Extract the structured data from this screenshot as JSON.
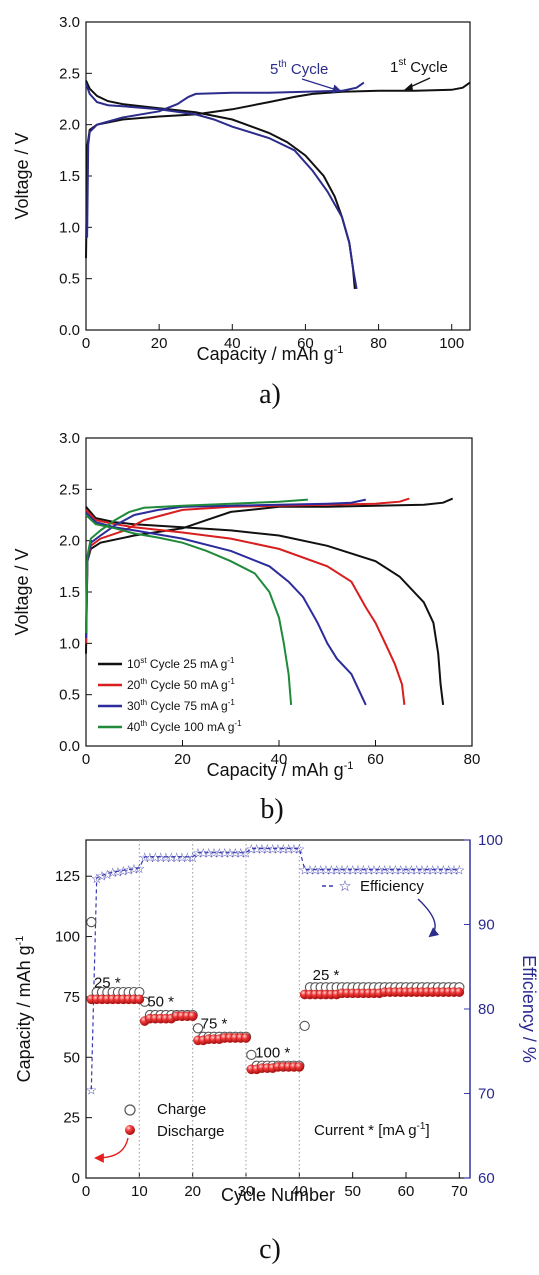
{
  "chart_data": [
    {
      "type": "line",
      "panel_label": "a)",
      "xlabel": "Capacity / mAh g",
      "xlabel_sup": "-1",
      "ylabel": "Voltage / V",
      "xlim": [
        0,
        105
      ],
      "ylim": [
        0,
        3.0
      ],
      "xticks": [
        "0",
        "20",
        "40",
        "60",
        "80",
        "100"
      ],
      "yticks": [
        "0.0",
        "0.5",
        "1.0",
        "1.5",
        "2.0",
        "2.5",
        "3.0"
      ],
      "colors": {
        "cycle1": "#111111",
        "cycle5": "#2c2c8c"
      },
      "annotations": [
        {
          "base": "5",
          "sup": "th",
          "rest": " Cycle",
          "color": "#2c2c8c"
        },
        {
          "base": "1",
          "sup": "st",
          "rest": " Cycle",
          "color": "#111111"
        }
      ],
      "series": [
        {
          "key": "cycle1",
          "color": "#111111",
          "discharge": [
            [
              0,
              2.43
            ],
            [
              1,
              2.35
            ],
            [
              3,
              2.28
            ],
            [
              6,
              2.23
            ],
            [
              10,
              2.2
            ],
            [
              20,
              2.16
            ],
            [
              30,
              2.12
            ],
            [
              40,
              2.05
            ],
            [
              50,
              1.92
            ],
            [
              55,
              1.83
            ],
            [
              60,
              1.7
            ],
            [
              65,
              1.5
            ],
            [
              68,
              1.3
            ],
            [
              70,
              1.1
            ],
            [
              72,
              0.85
            ],
            [
              73,
              0.6
            ],
            [
              73.5,
              0.4
            ]
          ],
          "charge": [
            [
              0,
              0.7
            ],
            [
              0.4,
              1.8
            ],
            [
              1,
              1.95
            ],
            [
              3,
              2.0
            ],
            [
              10,
              2.05
            ],
            [
              20,
              2.08
            ],
            [
              30,
              2.1
            ],
            [
              40,
              2.15
            ],
            [
              50,
              2.22
            ],
            [
              57,
              2.27
            ],
            [
              62,
              2.3
            ],
            [
              70,
              2.32
            ],
            [
              80,
              2.33
            ],
            [
              90,
              2.33
            ],
            [
              100,
              2.34
            ],
            [
              103,
              2.36
            ],
            [
              105,
              2.41
            ]
          ]
        },
        {
          "key": "cycle5",
          "color": "#2c2c8c",
          "discharge": [
            [
              0,
              2.4
            ],
            [
              1,
              2.3
            ],
            [
              3,
              2.22
            ],
            [
              6,
              2.19
            ],
            [
              10,
              2.18
            ],
            [
              20,
              2.15
            ],
            [
              30,
              2.1
            ],
            [
              35,
              2.05
            ],
            [
              40,
              1.98
            ],
            [
              50,
              1.87
            ],
            [
              57,
              1.75
            ],
            [
              62,
              1.55
            ],
            [
              66,
              1.35
            ],
            [
              70,
              1.1
            ],
            [
              72,
              0.85
            ],
            [
              73,
              0.6
            ],
            [
              74,
              0.4
            ]
          ],
          "charge": [
            [
              0.3,
              0.9
            ],
            [
              0.6,
              1.8
            ],
            [
              1,
              1.93
            ],
            [
              3,
              2.0
            ],
            [
              10,
              2.07
            ],
            [
              20,
              2.13
            ],
            [
              25,
              2.2
            ],
            [
              28,
              2.27
            ],
            [
              30,
              2.3
            ],
            [
              40,
              2.31
            ],
            [
              50,
              2.31
            ],
            [
              60,
              2.32
            ],
            [
              70,
              2.33
            ],
            [
              74,
              2.36
            ],
            [
              76,
              2.41
            ]
          ]
        }
      ]
    },
    {
      "type": "line",
      "panel_label": "b)",
      "xlabel": "Capacity / mAh g",
      "xlabel_sup": "-1",
      "ylabel": "Voltage / V",
      "xlim": [
        0,
        80
      ],
      "ylim": [
        0,
        3.0
      ],
      "xticks": [
        "0",
        "20",
        "40",
        "60",
        "80"
      ],
      "yticks": [
        "0.0",
        "0.5",
        "1.0",
        "1.5",
        "2.0",
        "2.5",
        "3.0"
      ],
      "legend": [
        {
          "base": "10",
          "sup": "st",
          "rest": " Cycle 25 mA g",
          "unit_sup": "-1",
          "color": "#111111"
        },
        {
          "base": "20",
          "sup": "th",
          "rest": " Cycle 50 mA g",
          "unit_sup": "-1",
          "color": "#d81e1e"
        },
        {
          "base": "30",
          "sup": "th",
          "rest": " Cycle 75 mA g",
          "unit_sup": "-1",
          "color": "#2c2c9c"
        },
        {
          "base": "40",
          "sup": "th",
          "rest": " Cycle 100 mA g",
          "unit_sup": "-1",
          "color": "#1f8a3a"
        }
      ],
      "series": [
        {
          "color": "#111111",
          "discharge": [
            [
              0,
              2.33
            ],
            [
              2,
              2.22
            ],
            [
              6,
              2.18
            ],
            [
              10,
              2.16
            ],
            [
              20,
              2.13
            ],
            [
              30,
              2.1
            ],
            [
              40,
              2.05
            ],
            [
              50,
              1.95
            ],
            [
              60,
              1.8
            ],
            [
              65,
              1.65
            ],
            [
              70,
              1.4
            ],
            [
              72,
              1.2
            ],
            [
              73,
              0.9
            ],
            [
              73.5,
              0.6
            ],
            [
              74,
              0.4
            ]
          ],
          "charge": [
            [
              0,
              0.9
            ],
            [
              0.3,
              1.8
            ],
            [
              1,
              1.92
            ],
            [
              3,
              1.98
            ],
            [
              10,
              2.05
            ],
            [
              20,
              2.12
            ],
            [
              25,
              2.2
            ],
            [
              30,
              2.28
            ],
            [
              40,
              2.33
            ],
            [
              50,
              2.33
            ],
            [
              60,
              2.34
            ],
            [
              70,
              2.35
            ],
            [
              74,
              2.37
            ],
            [
              76,
              2.41
            ]
          ]
        },
        {
          "color": "#d81e1e",
          "discharge": [
            [
              0,
              2.3
            ],
            [
              2,
              2.2
            ],
            [
              6,
              2.16
            ],
            [
              10,
              2.13
            ],
            [
              20,
              2.08
            ],
            [
              30,
              2.02
            ],
            [
              40,
              1.92
            ],
            [
              50,
              1.75
            ],
            [
              55,
              1.6
            ],
            [
              58,
              1.35
            ],
            [
              60,
              1.2
            ],
            [
              62,
              1.0
            ],
            [
              64,
              0.8
            ],
            [
              65.5,
              0.6
            ],
            [
              66,
              0.4
            ]
          ],
          "charge": [
            [
              0,
              1.0
            ],
            [
              0.3,
              1.8
            ],
            [
              1,
              1.95
            ],
            [
              3,
              2.02
            ],
            [
              8,
              2.1
            ],
            [
              12,
              2.2
            ],
            [
              20,
              2.3
            ],
            [
              30,
              2.33
            ],
            [
              40,
              2.34
            ],
            [
              50,
              2.35
            ],
            [
              60,
              2.36
            ],
            [
              65,
              2.38
            ],
            [
              67,
              2.41
            ]
          ]
        },
        {
          "color": "#2c2c9c",
          "discharge": [
            [
              0,
              2.27
            ],
            [
              2,
              2.18
            ],
            [
              6,
              2.13
            ],
            [
              10,
              2.1
            ],
            [
              20,
              2.02
            ],
            [
              30,
              1.9
            ],
            [
              38,
              1.75
            ],
            [
              42,
              1.6
            ],
            [
              45,
              1.45
            ],
            [
              48,
              1.2
            ],
            [
              50,
              1.0
            ],
            [
              52,
              0.85
            ],
            [
              55,
              0.7
            ],
            [
              58,
              0.4
            ]
          ],
          "charge": [
            [
              0,
              1.05
            ],
            [
              0.3,
              1.8
            ],
            [
              1,
              1.98
            ],
            [
              3,
              2.05
            ],
            [
              6,
              2.15
            ],
            [
              10,
              2.25
            ],
            [
              15,
              2.3
            ],
            [
              20,
              2.33
            ],
            [
              30,
              2.34
            ],
            [
              40,
              2.35
            ],
            [
              50,
              2.36
            ],
            [
              55,
              2.37
            ],
            [
              58,
              2.4
            ]
          ]
        },
        {
          "color": "#1f8a3a",
          "discharge": [
            [
              0,
              2.25
            ],
            [
              2,
              2.16
            ],
            [
              6,
              2.12
            ],
            [
              10,
              2.07
            ],
            [
              15,
              2.03
            ],
            [
              20,
              1.98
            ],
            [
              25,
              1.9
            ],
            [
              30,
              1.8
            ],
            [
              35,
              1.68
            ],
            [
              38,
              1.5
            ],
            [
              40,
              1.25
            ],
            [
              41,
              1.0
            ],
            [
              42,
              0.7
            ],
            [
              42.5,
              0.4
            ]
          ],
          "charge": [
            [
              0,
              1.1
            ],
            [
              0.3,
              1.85
            ],
            [
              1,
              2.02
            ],
            [
              3,
              2.1
            ],
            [
              6,
              2.2
            ],
            [
              9,
              2.28
            ],
            [
              12,
              2.32
            ],
            [
              20,
              2.34
            ],
            [
              30,
              2.36
            ],
            [
              40,
              2.38
            ],
            [
              46,
              2.4
            ]
          ]
        }
      ]
    },
    {
      "type": "scatter",
      "panel_label": "c)",
      "xlabel": "Cycle Number",
      "ylabel": "Capacity / mAh g",
      "ylabel_sup": "-1",
      "ylabel_right": "Efficiency / %",
      "xlim": [
        0,
        72
      ],
      "ylim": [
        0,
        140
      ],
      "ylim_right": [
        60,
        100
      ],
      "xticks": [
        "0",
        "10",
        "20",
        "30",
        "40",
        "50",
        "60",
        "70"
      ],
      "yticks": [
        "0",
        "25",
        "50",
        "75",
        "100",
        "125"
      ],
      "yticks_right": [
        "60",
        "70",
        "80",
        "90",
        "100"
      ],
      "colors": {
        "discharge": "#e51e1e",
        "efficiency": "#3a3ab0",
        "dotted": "#999999"
      },
      "legend": {
        "charge": "Charge",
        "discharge": "Discharge",
        "efficiency": "Efficiency"
      },
      "current_label": "Current * [mA g",
      "current_label_sup": "-1",
      "current_label_end": "]",
      "rate_labels": [
        "25 *",
        "50 *",
        "75 *",
        "100 *",
        "25 *"
      ],
      "charge": [
        106,
        77,
        77,
        77,
        77,
        77,
        77,
        77,
        77,
        77,
        73,
        67.5,
        67.5,
        67.5,
        67.5,
        67.5,
        67.5,
        67.5,
        67.5,
        67.5,
        62,
        58.5,
        58.5,
        58.5,
        58.5,
        58.5,
        58.5,
        58.5,
        58.5,
        58.5,
        51,
        46.5,
        46.5,
        46.5,
        46.5,
        46.5,
        46.5,
        46.5,
        46.5,
        46.5,
        63,
        79,
        79,
        79,
        79,
        79,
        79,
        79,
        79,
        79,
        79,
        79,
        79,
        79,
        79,
        79,
        79,
        79,
        79,
        79,
        79,
        79,
        79,
        79,
        79,
        79,
        79,
        79,
        79,
        79
      ],
      "discharge": [
        74,
        74,
        74,
        74,
        74,
        74,
        74,
        74,
        74,
        74,
        65,
        66,
        66,
        66,
        66,
        66,
        67,
        67,
        67,
        67,
        57,
        57,
        57.5,
        57.5,
        57.5,
        58,
        58,
        58,
        58,
        58,
        45,
        45,
        45.5,
        45.5,
        45.5,
        46,
        46,
        46,
        46,
        46,
        76,
        76,
        76,
        76,
        76,
        76,
        76,
        76.5,
        76.5,
        76.5,
        76.5,
        76.5,
        76.5,
        76.5,
        76.5,
        77,
        77,
        77,
        77,
        77,
        77,
        77,
        77,
        77,
        77,
        77,
        77,
        77,
        77,
        77
      ],
      "efficiency": [
        70.5,
        95.5,
        95.8,
        96,
        96.2,
        96.3,
        96.4,
        96.5,
        96.6,
        96.7,
        98,
        98,
        98,
        98,
        98,
        98,
        98,
        98,
        98,
        98,
        98.5,
        98.5,
        98.5,
        98.5,
        98.5,
        98.5,
        98.5,
        98.5,
        98.5,
        98.5,
        99,
        99,
        99,
        99,
        99,
        99,
        99,
        99,
        99,
        99,
        96.5,
        96.5,
        96.5,
        96.5,
        96.5,
        96.5,
        96.5,
        96.5,
        96.5,
        96.5,
        96.5,
        96.5,
        96.5,
        96.5,
        96.5,
        96.5,
        96.5,
        96.5,
        96.5,
        96.5,
        96.5,
        96.5,
        96.5,
        96.5,
        96.5,
        96.5,
        96.5,
        96.5,
        96.5,
        96.5
      ]
    }
  ]
}
